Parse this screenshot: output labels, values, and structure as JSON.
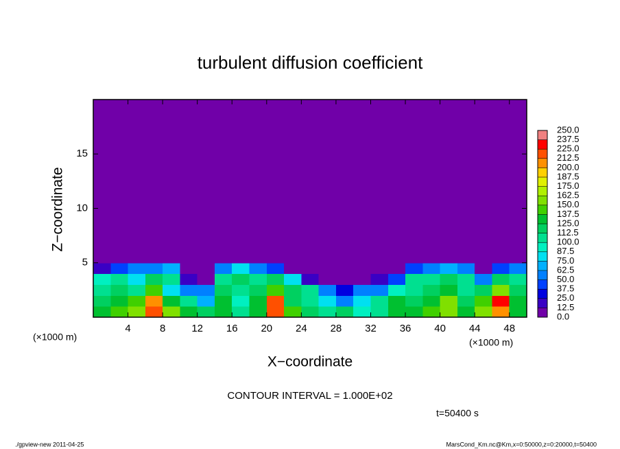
{
  "chart_data": {
    "type": "heatmap",
    "title": "turbulent diffusion coefficient",
    "x_label": "X−coordinate",
    "y_label": "Z−coordinate",
    "x_unit": "(×1000 m)",
    "xlim": [
      0,
      50
    ],
    "ylim": [
      0,
      20
    ],
    "xticks": [
      4,
      8,
      12,
      16,
      20,
      24,
      28,
      32,
      36,
      40,
      44,
      48
    ],
    "yticks": [
      5,
      10,
      15
    ],
    "x_bins": [
      0,
      2,
      4,
      6,
      8,
      10,
      12,
      14,
      16,
      18,
      20,
      22,
      24,
      26,
      28,
      30,
      32,
      34,
      36,
      38,
      40,
      42,
      44,
      46,
      48,
      50
    ],
    "y_bins": [
      0,
      1,
      2,
      3,
      4,
      5,
      20
    ],
    "z": [
      [
        130,
        140,
        150,
        220,
        150,
        130,
        120,
        130,
        100,
        130,
        220,
        140,
        120,
        110,
        120,
        90,
        100,
        130,
        130,
        140,
        160,
        130,
        150,
        210,
        130
      ],
      [
        120,
        130,
        140,
        200,
        130,
        110,
        70,
        130,
        90,
        130,
        220,
        120,
        110,
        80,
        60,
        80,
        110,
        130,
        120,
        130,
        150,
        120,
        140,
        230,
        130
      ],
      [
        110,
        120,
        100,
        140,
        80,
        60,
        50,
        120,
        100,
        120,
        140,
        120,
        100,
        50,
        30,
        60,
        60,
        90,
        110,
        120,
        130,
        110,
        120,
        160,
        120
      ],
      [
        90,
        100,
        80,
        120,
        110,
        20,
        10,
        100,
        120,
        110,
        120,
        80,
        20,
        10,
        0,
        10,
        20,
        40,
        100,
        110,
        120,
        100,
        60,
        120,
        100
      ],
      [
        20,
        40,
        60,
        60,
        70,
        0,
        0,
        60,
        80,
        60,
        40,
        0,
        0,
        0,
        0,
        0,
        0,
        0,
        40,
        60,
        70,
        60,
        10,
        40,
        50
      ],
      [
        0,
        0,
        0,
        0,
        0,
        0,
        0,
        0,
        0,
        0,
        0,
        0,
        0,
        0,
        0,
        0,
        0,
        0,
        0,
        0,
        0,
        0,
        0,
        0,
        0
      ]
    ],
    "clim": [
      0,
      250
    ],
    "colorbar_ticks": [
      {
        "value": 0,
        "label": "0.0"
      },
      12.5,
      {
        "value": 25,
        "label": "25.0"
      },
      37.5,
      {
        "value": 50,
        "label": "50.0"
      },
      62.5,
      {
        "value": 75,
        "label": "75.0"
      },
      87.5,
      {
        "value": 100,
        "label": "100.0"
      },
      112.5,
      {
        "value": 125,
        "label": "125.0"
      },
      137.5,
      {
        "value": 150,
        "label": "150.0"
      },
      162.5,
      {
        "value": 175,
        "label": "175.0"
      },
      187.5,
      {
        "value": 200,
        "label": "200.0"
      },
      212.5,
      {
        "value": 225,
        "label": "225.0"
      },
      237.5,
      {
        "value": 250,
        "label": "250.0"
      }
    ],
    "colors": [
      "#7000a8",
      "#3a00c4",
      "#0000e0",
      "#0040ff",
      "#0080ff",
      "#00b0ff",
      "#00e0f0",
      "#00f0c0",
      "#00e090",
      "#00d060",
      "#00c030",
      "#40d000",
      "#80e000",
      "#b0f000",
      "#e0f000",
      "#ffd000",
      "#ff9000",
      "#ff5000",
      "#ff0000",
      "#f08080"
    ],
    "annotation": "CONTOUR INTERVAL = 1.000E+02",
    "time_label": "t=50400 s",
    "footer_left": "./gpview-new  2011-04-25",
    "footer_right": "MarsCond_Km.nc@Km,x=0:50000,z=0:20000,t=50400"
  }
}
